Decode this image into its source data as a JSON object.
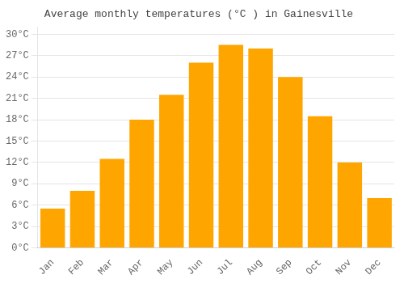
{
  "chart_data": {
    "type": "bar",
    "title": "Average monthly temperatures (°C ) in Gainesville",
    "categories": [
      "Jan",
      "Feb",
      "Mar",
      "Apr",
      "May",
      "Jun",
      "Jul",
      "Aug",
      "Sep",
      "Oct",
      "Nov",
      "Dec"
    ],
    "values": [
      5.5,
      8.0,
      12.5,
      18.0,
      21.5,
      26.0,
      28.5,
      28.0,
      24.0,
      18.5,
      12.0,
      7.0
    ],
    "color": "#FFA500",
    "ylim": [
      0,
      31
    ],
    "yticks": [
      {
        "value": 0,
        "label": "0°C"
      },
      {
        "value": 3,
        "label": "3°C"
      },
      {
        "value": 6,
        "label": "6°C"
      },
      {
        "value": 9,
        "label": "9°C"
      },
      {
        "value": 12,
        "label": "12°C"
      },
      {
        "value": 15,
        "label": "15°C"
      },
      {
        "value": 18,
        "label": "18°C"
      },
      {
        "value": 21,
        "label": "21°C"
      },
      {
        "value": 24,
        "label": "24°C"
      },
      {
        "value": 27,
        "label": "27°C"
      },
      {
        "value": 30,
        "label": "30°C"
      }
    ],
    "grid": true
  }
}
